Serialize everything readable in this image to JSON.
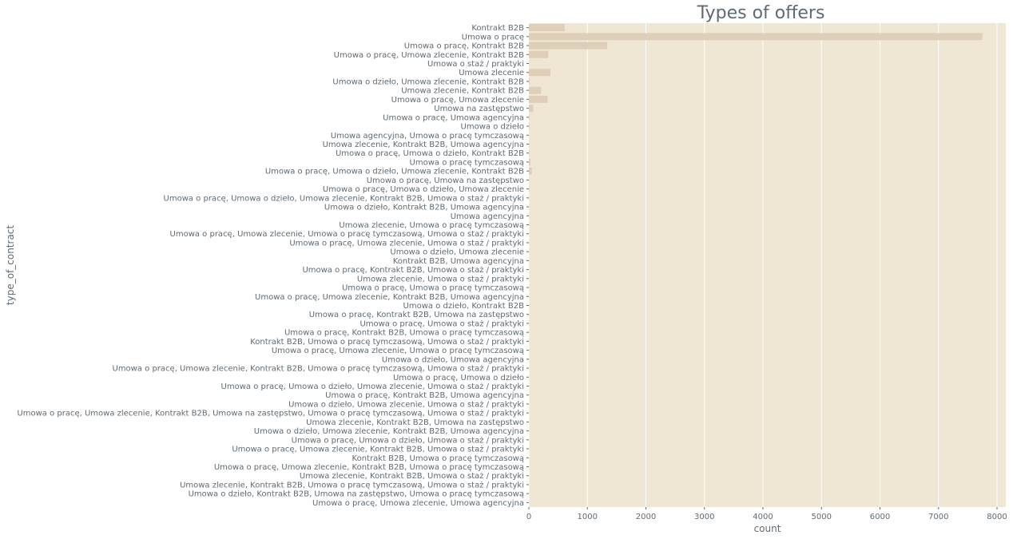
{
  "chart_data": {
    "type": "bar",
    "orientation": "horizontal",
    "title": "Types of offers",
    "xlabel": "count",
    "ylabel": "type_of_contract",
    "xlim": [
      0,
      8150
    ],
    "xticks": [
      0,
      1000,
      2000,
      3000,
      4000,
      5000,
      6000,
      7000,
      8000
    ],
    "grid": true,
    "colors": {
      "background": "#efe7d4",
      "grid": "#ffffff",
      "bar": "#dfcfb8",
      "text": "#5f6b73"
    },
    "categories": [
      "Kontrakt B2B",
      "Umowa o pracę",
      "Umowa o pracę, Kontrakt B2B",
      "Umowa o pracę, Umowa zlecenie, Kontrakt B2B",
      "Umowa o staż / praktyki",
      "Umowa zlecenie",
      "Umowa o dzieło, Umowa zlecenie, Kontrakt B2B",
      "Umowa zlecenie, Kontrakt B2B",
      "Umowa o pracę, Umowa zlecenie",
      "Umowa na zastępstwo",
      "Umowa o pracę, Umowa agencyjna",
      "Umowa o dzieło",
      "Umowa agencyjna, Umowa o pracę tymczasową",
      "Umowa zlecenie, Kontrakt B2B, Umowa agencyjna",
      "Umowa o pracę, Umowa o dzieło, Kontrakt B2B",
      "Umowa o pracę tymczasową",
      "Umowa o pracę, Umowa o dzieło, Umowa zlecenie, Kontrakt B2B",
      "Umowa o pracę, Umowa na zastępstwo",
      "Umowa o pracę, Umowa o dzieło, Umowa zlecenie",
      "Umowa o pracę, Umowa o dzieło, Umowa zlecenie, Kontrakt B2B, Umowa o staż / praktyki",
      "Umowa o dzieło, Kontrakt B2B, Umowa agencyjna",
      "Umowa agencyjna",
      "Umowa zlecenie, Umowa o pracę tymczasową",
      "Umowa o pracę, Umowa zlecenie, Umowa o pracę tymczasową, Umowa o staż / praktyki",
      "Umowa o pracę, Umowa zlecenie, Umowa o staż / praktyki",
      "Umowa o dzieło, Umowa zlecenie",
      "Kontrakt B2B, Umowa agencyjna",
      "Umowa o pracę, Kontrakt B2B, Umowa o staż / praktyki",
      "Umowa zlecenie, Umowa o staż / praktyki",
      "Umowa o pracę, Umowa o pracę tymczasową",
      "Umowa o pracę, Umowa zlecenie, Kontrakt B2B, Umowa agencyjna",
      "Umowa o dzieło, Kontrakt B2B",
      "Umowa o pracę, Kontrakt B2B, Umowa na zastępstwo",
      "Umowa o pracę, Umowa o staż / praktyki",
      "Umowa o pracę, Kontrakt B2B, Umowa o pracę tymczasową",
      "Kontrakt B2B, Umowa o pracę tymczasową, Umowa o staż / praktyki",
      "Umowa o pracę, Umowa zlecenie, Umowa o pracę tymczasową",
      "Umowa o dzieło, Umowa agencyjna",
      "Umowa o pracę, Umowa zlecenie, Kontrakt B2B, Umowa o pracę tymczasową, Umowa o staż / praktyki",
      "Umowa o pracę, Umowa o dzieło",
      "Umowa o pracę, Umowa o dzieło, Umowa zlecenie, Umowa o staż / praktyki",
      "Umowa o pracę, Kontrakt B2B, Umowa agencyjna",
      "Umowa o dzieło, Umowa zlecenie, Umowa o staż / praktyki",
      "Umowa o pracę, Umowa zlecenie, Kontrakt B2B, Umowa na zastępstwo, Umowa o pracę tymczasową, Umowa o staż / praktyki",
      "Umowa zlecenie, Kontrakt B2B, Umowa na zastępstwo",
      "Umowa o dzieło, Umowa zlecenie, Kontrakt B2B, Umowa agencyjna",
      "Umowa o pracę, Umowa o dzieło, Umowa o staż / praktyki",
      "Umowa o pracę, Umowa zlecenie, Kontrakt B2B, Umowa o staż / praktyki",
      "Kontrakt B2B, Umowa o pracę tymczasową",
      "Umowa o pracę, Umowa zlecenie, Kontrakt B2B, Umowa o pracę tymczasową",
      "Umowa zlecenie, Kontrakt B2B, Umowa o staż / praktyki",
      "Umowa zlecenie, Kontrakt B2B, Umowa o pracę tymczasową, Umowa o staż / praktyki",
      "Umowa o dzieło, Kontrakt B2B, Umowa na zastępstwo, Umowa o pracę tymczasową",
      "Umowa o pracę, Umowa zlecenie, Umowa agencyjna"
    ],
    "values": [
      610,
      7750,
      1340,
      330,
      5,
      370,
      15,
      210,
      320,
      75,
      10,
      12,
      5,
      5,
      8,
      25,
      50,
      5,
      5,
      3,
      3,
      5,
      3,
      2,
      3,
      3,
      3,
      2,
      2,
      3,
      2,
      2,
      2,
      3,
      2,
      2,
      2,
      2,
      1,
      2,
      1,
      2,
      1,
      1,
      1,
      1,
      1,
      1,
      1,
      1,
      1,
      1,
      1,
      1
    ]
  }
}
